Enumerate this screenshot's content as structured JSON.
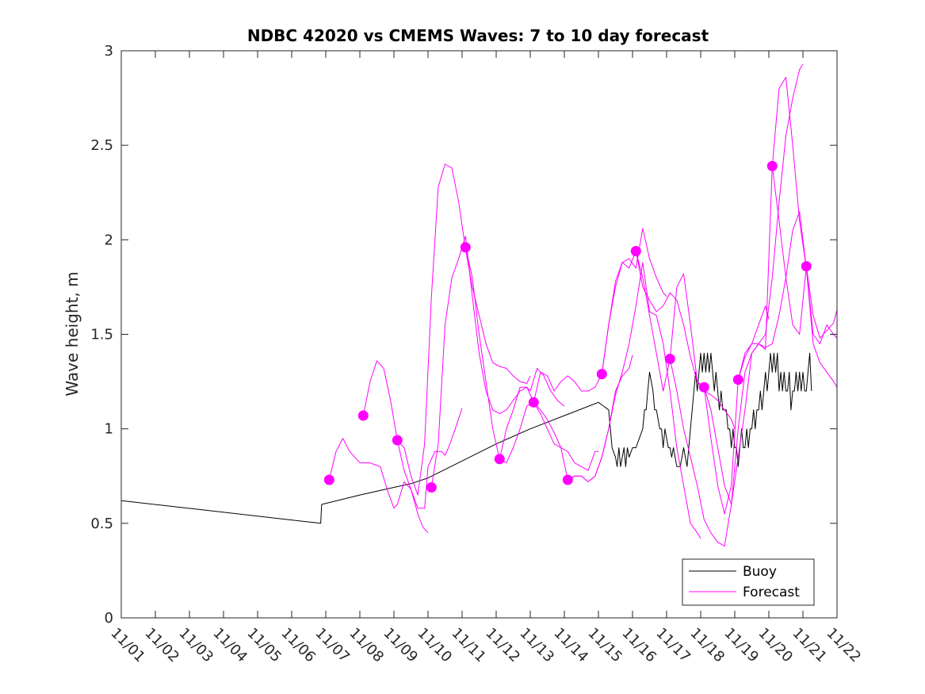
{
  "chart_data": {
    "type": "line",
    "title": "NDBC 42020 vs CMEMS Waves: 7 to 10 day forecast",
    "xlabel": "",
    "ylabel": "Wave height, m",
    "x_units": "day of November (day 1 = 11/01)",
    "xlim": [
      1,
      22
    ],
    "ylim": [
      0,
      3
    ],
    "x_ticks": [
      1,
      2,
      3,
      4,
      5,
      6,
      7,
      8,
      9,
      10,
      11,
      12,
      13,
      14,
      15,
      16,
      17,
      18,
      19,
      20,
      21,
      22
    ],
    "x_tick_labels": [
      "11/01",
      "11/02",
      "11/03",
      "11/04",
      "11/05",
      "11/06",
      "11/07",
      "11/08",
      "11/09",
      "11/10",
      "11/11",
      "11/12",
      "11/13",
      "11/14",
      "11/15",
      "11/16",
      "11/17",
      "11/18",
      "11/19",
      "11/20",
      "11/21",
      "11/22"
    ],
    "y_ticks": [
      0,
      0.5,
      1,
      1.5,
      2,
      2.5,
      3
    ],
    "y_tick_labels": [
      "0",
      "0.5",
      "1",
      "1.5",
      "2",
      "2.5",
      "3"
    ],
    "grid": false,
    "legend": {
      "location": "bottom-right",
      "entries": [
        "Buoy",
        "Forecast"
      ]
    },
    "colors": {
      "buoy": "#000000",
      "forecast": "#ff00ff",
      "axis": "#262626"
    },
    "series": [
      {
        "name": "Buoy",
        "color": "#000000",
        "x": [
          1,
          6.85,
          6.88,
          8.0,
          9.0,
          9.5,
          10.0,
          11.0,
          12.0,
          13.0,
          14.0,
          15.0,
          15.3,
          15.35,
          15.4,
          15.5,
          15.55,
          15.6,
          15.65,
          15.7,
          15.75,
          15.8,
          15.85,
          15.9,
          16.0,
          16.1,
          16.2,
          16.3,
          16.35,
          16.4,
          16.45,
          16.5,
          16.6,
          16.65,
          16.7,
          16.8,
          16.85,
          16.9,
          16.95,
          17.0,
          17.05,
          17.1,
          17.15,
          17.2,
          17.3,
          17.4,
          17.5,
          17.6,
          17.7,
          17.75,
          17.8,
          17.85,
          17.9,
          17.95,
          18.0,
          18.05,
          18.1,
          18.15,
          18.2,
          18.25,
          18.3,
          18.35,
          18.4,
          18.45,
          18.5,
          18.55,
          18.6,
          18.65,
          18.7,
          18.75,
          18.8,
          18.85,
          18.9,
          18.95,
          19.0,
          19.05,
          19.1,
          19.15,
          19.2,
          19.25,
          19.3,
          19.35,
          19.4,
          19.45,
          19.5,
          19.55,
          19.6,
          19.65,
          19.7,
          19.75,
          19.8,
          19.85,
          19.9,
          19.95,
          20.0,
          20.05,
          20.1,
          20.15,
          20.2,
          20.25,
          20.3,
          20.35,
          20.4,
          20.45,
          20.5,
          20.55,
          20.6,
          20.65,
          20.7,
          20.75,
          20.8,
          20.85,
          20.9,
          20.95,
          21.0,
          21.05,
          21.1,
          21.15,
          21.2,
          21.25
        ],
        "values": [
          0.62,
          0.5,
          0.6,
          0.65,
          0.69,
          0.71,
          0.74,
          0.83,
          0.92,
          1.0,
          1.07,
          1.14,
          1.1,
          1.0,
          0.9,
          0.85,
          0.8,
          0.9,
          0.8,
          0.85,
          0.9,
          0.8,
          0.9,
          0.85,
          0.9,
          0.9,
          0.95,
          1.0,
          1.1,
          1.1,
          1.2,
          1.3,
          1.2,
          1.1,
          1.1,
          1.0,
          1.0,
          0.9,
          1.0,
          0.95,
          0.9,
          0.9,
          0.85,
          0.9,
          0.8,
          0.8,
          0.9,
          0.8,
          1.0,
          1.1,
          1.2,
          1.3,
          1.2,
          1.3,
          1.4,
          1.3,
          1.4,
          1.3,
          1.4,
          1.3,
          1.4,
          1.3,
          1.2,
          1.3,
          1.2,
          1.1,
          1.2,
          1.1,
          1.1,
          1.1,
          1.0,
          1.0,
          0.9,
          1.0,
          0.9,
          0.9,
          0.8,
          0.9,
          1.0,
          0.9,
          0.9,
          1.0,
          0.9,
          1.0,
          1.0,
          1.1,
          1.0,
          1.1,
          1.1,
          1.2,
          1.1,
          1.2,
          1.3,
          1.2,
          1.3,
          1.4,
          1.3,
          1.4,
          1.3,
          1.4,
          1.2,
          1.3,
          1.2,
          1.3,
          1.2,
          1.2,
          1.3,
          1.1,
          1.2,
          1.2,
          1.3,
          1.2,
          1.3,
          1.2,
          1.3,
          1.2,
          1.2,
          1.3,
          1.4,
          1.2
        ]
      },
      {
        "name": "Forecast run 1",
        "color": "#ff00ff",
        "x": [
          7.1,
          7.3,
          7.5,
          7.7,
          8.0,
          8.3,
          8.6,
          8.8,
          9.0,
          9.1,
          9.3,
          9.5,
          9.7,
          9.85,
          10.0
        ],
        "values": [
          0.73,
          0.88,
          0.95,
          0.88,
          0.82,
          0.82,
          0.8,
          0.68,
          0.58,
          0.6,
          0.72,
          0.68,
          0.55,
          0.48,
          0.45
        ]
      },
      {
        "name": "Forecast run 2",
        "color": "#ff00ff",
        "x": [
          8.1,
          8.3,
          8.5,
          8.7,
          8.9,
          9.1,
          9.3,
          9.5,
          9.7,
          9.9,
          10.0,
          10.2,
          10.4,
          10.5,
          10.6,
          10.8,
          11.0
        ],
        "values": [
          1.07,
          1.25,
          1.36,
          1.32,
          1.15,
          0.94,
          0.78,
          0.68,
          0.58,
          0.58,
          0.8,
          0.88,
          0.88,
          0.86,
          0.9,
          1.0,
          1.11
        ]
      },
      {
        "name": "Forecast run 3",
        "color": "#ff00ff",
        "x": [
          9.1,
          9.3,
          9.5,
          9.7,
          9.9,
          10.1,
          10.3,
          10.5,
          10.7,
          10.9,
          11.1,
          11.3,
          11.5,
          11.7,
          11.9,
          12.1,
          12.3,
          12.5,
          12.7,
          12.9,
          13.0
        ],
        "values": [
          0.94,
          0.9,
          0.75,
          0.65,
          0.92,
          1.7,
          2.28,
          2.4,
          2.38,
          2.2,
          1.95,
          1.75,
          1.6,
          1.45,
          1.35,
          1.33,
          1.32,
          1.28,
          1.25,
          1.24,
          1.28
        ]
      },
      {
        "name": "Forecast run 4",
        "color": "#ff00ff",
        "x": [
          10.1,
          10.3,
          10.5,
          10.7,
          10.9,
          11.1,
          11.3,
          11.5,
          11.7,
          11.9,
          12.1,
          12.3,
          12.5,
          12.7,
          12.9,
          13.0,
          13.2,
          13.4,
          13.6,
          13.8,
          14.0
        ],
        "values": [
          0.69,
          0.92,
          1.55,
          1.8,
          1.9,
          2.02,
          1.7,
          1.4,
          1.2,
          1.1,
          1.08,
          1.1,
          1.15,
          1.2,
          1.22,
          1.2,
          1.32,
          1.28,
          1.2,
          1.15,
          1.12
        ]
      },
      {
        "name": "Forecast run 5",
        "color": "#ff00ff",
        "x": [
          11.1,
          11.3,
          11.5,
          11.7,
          11.9,
          12.1,
          12.3,
          12.5,
          12.7,
          12.9,
          13.1,
          13.3,
          13.5,
          13.7,
          13.9,
          14.1,
          14.3,
          14.5,
          14.7,
          14.9,
          15.0
        ],
        "values": [
          1.96,
          1.8,
          1.5,
          1.25,
          1.0,
          0.84,
          0.82,
          0.9,
          1.0,
          1.12,
          1.14,
          1.08,
          1.0,
          0.92,
          0.9,
          0.88,
          0.82,
          0.8,
          0.78,
          0.88,
          0.88
        ]
      },
      {
        "name": "Forecast run 6",
        "color": "#ff00ff",
        "x": [
          12.1,
          12.3,
          12.5,
          12.7,
          12.9,
          13.1,
          13.3,
          13.5,
          13.7,
          13.9,
          14.1,
          14.3,
          14.5,
          14.7,
          14.9,
          15.1,
          15.3,
          15.5,
          15.7,
          15.9,
          16.0
        ],
        "values": [
          0.84,
          1.0,
          1.1,
          1.22,
          1.22,
          1.14,
          1.1,
          1.05,
          0.98,
          0.9,
          0.73,
          0.75,
          0.75,
          0.72,
          0.75,
          0.85,
          1.0,
          1.2,
          1.28,
          1.32,
          1.39
        ]
      },
      {
        "name": "Forecast run 7",
        "color": "#ff00ff",
        "x": [
          13.1,
          13.3,
          13.5,
          13.7,
          13.9,
          14.1,
          14.3,
          14.5,
          14.7,
          14.9,
          15.1,
          15.3,
          15.5,
          15.7,
          15.9,
          16.1,
          16.3,
          16.5,
          16.7,
          16.9,
          17.0
        ],
        "values": [
          1.14,
          1.3,
          1.28,
          1.2,
          1.25,
          1.28,
          1.25,
          1.2,
          1.2,
          1.22,
          1.29,
          1.55,
          1.78,
          1.88,
          1.9,
          1.85,
          2.06,
          1.9,
          1.8,
          1.72,
          1.7
        ]
      },
      {
        "name": "Forecast run 8",
        "color": "#ff00ff",
        "x": [
          14.1,
          14.3,
          14.5,
          14.7,
          14.9,
          15.1,
          15.3,
          15.5,
          15.7,
          15.9,
          16.1,
          16.3,
          16.5,
          16.7,
          16.9,
          17.1,
          17.3,
          17.5,
          17.7,
          17.9,
          18.0
        ],
        "values": [
          0.73,
          0.75,
          0.75,
          0.72,
          0.75,
          0.85,
          1.0,
          1.18,
          1.3,
          1.45,
          1.65,
          1.88,
          1.62,
          1.6,
          1.45,
          1.2,
          0.9,
          0.7,
          0.5,
          0.45,
          0.42
        ]
      },
      {
        "name": "Forecast run 9",
        "color": "#ff00ff",
        "x": [
          15.1,
          15.3,
          15.5,
          15.7,
          15.9,
          16.1,
          16.3,
          16.5,
          16.7,
          16.9,
          17.1,
          17.3,
          17.5,
          17.7,
          17.9,
          18.1,
          18.3,
          18.5,
          18.7,
          18.9,
          19.0
        ],
        "values": [
          1.29,
          1.55,
          1.75,
          1.88,
          1.85,
          1.94,
          1.75,
          1.68,
          1.62,
          1.65,
          1.72,
          1.68,
          1.55,
          1.38,
          1.25,
          1.2,
          1.18,
          1.15,
          1.1,
          1.05,
          1.0
        ]
      },
      {
        "name": "Forecast run 10",
        "color": "#ff00ff",
        "x": [
          16.1,
          16.3,
          16.5,
          16.7,
          16.9,
          17.1,
          17.3,
          17.5,
          17.7,
          17.9,
          18.1,
          18.3,
          18.5,
          18.7,
          18.9,
          19.1,
          19.3,
          19.5,
          19.7,
          19.9,
          20.0
        ],
        "values": [
          1.94,
          1.8,
          1.6,
          1.4,
          1.2,
          1.37,
          1.75,
          1.82,
          1.55,
          1.25,
          1.22,
          0.95,
          0.7,
          0.55,
          0.7,
          1.26,
          1.38,
          1.45,
          1.55,
          1.65,
          1.58
        ]
      },
      {
        "name": "Forecast run 11",
        "color": "#ff00ff",
        "x": [
          17.1,
          17.3,
          17.5,
          17.7,
          17.9,
          18.1,
          18.3,
          18.5,
          18.7,
          18.9,
          19.1,
          19.3,
          19.5,
          19.7,
          19.9,
          20.1,
          20.3,
          20.5,
          20.7,
          20.9,
          21.0
        ],
        "values": [
          1.37,
          1.2,
          1.0,
          0.85,
          0.7,
          0.52,
          0.45,
          0.4,
          0.38,
          0.6,
          1.0,
          1.3,
          1.4,
          1.45,
          1.5,
          1.8,
          2.2,
          2.55,
          2.75,
          2.9,
          2.93
        ]
      },
      {
        "name": "Forecast run 12",
        "color": "#ff00ff",
        "x": [
          18.1,
          18.3,
          18.5,
          18.7,
          18.9,
          19.1,
          19.3,
          19.5,
          19.7,
          19.9,
          20.1,
          20.3,
          20.5,
          20.7,
          20.9,
          21.1,
          21.3,
          21.5,
          21.7,
          21.9,
          22.0
        ],
        "values": [
          1.22,
          1.1,
          0.9,
          0.7,
          0.6,
          0.85,
          1.1,
          1.4,
          1.45,
          1.42,
          2.39,
          2.8,
          2.86,
          2.5,
          2.1,
          1.85,
          1.45,
          1.35,
          1.3,
          1.25,
          1.22
        ]
      },
      {
        "name": "Forecast run 13",
        "color": "#ff00ff",
        "x": [
          19.1,
          19.3,
          19.5,
          19.7,
          19.9,
          20.1,
          20.3,
          20.5,
          20.7,
          20.9,
          21.1,
          21.3,
          21.5,
          21.7,
          21.9,
          22.0
        ],
        "values": [
          1.26,
          1.4,
          1.45,
          1.45,
          1.43,
          1.45,
          1.6,
          1.8,
          2.05,
          2.15,
          1.85,
          1.5,
          1.45,
          1.55,
          1.5,
          1.48
        ]
      },
      {
        "name": "Forecast run 14",
        "color": "#ff00ff",
        "x": [
          20.1,
          20.3,
          20.5,
          20.7,
          20.9,
          21.1,
          21.3,
          21.5,
          21.7,
          21.9,
          22.0
        ],
        "values": [
          2.39,
          2.1,
          1.8,
          1.55,
          1.5,
          1.86,
          1.6,
          1.48,
          1.52,
          1.56,
          1.63
        ]
      }
    ],
    "markers": {
      "name": "Forecast initial points",
      "color": "#ff00ff",
      "x": [
        7.1,
        8.1,
        9.1,
        10.1,
        11.1,
        12.1,
        13.1,
        14.1,
        15.1,
        16.1,
        17.1,
        18.1,
        19.1,
        20.1,
        21.1
      ],
      "values": [
        0.73,
        1.07,
        0.94,
        0.69,
        1.96,
        0.84,
        1.14,
        0.73,
        1.29,
        1.94,
        1.37,
        1.22,
        1.26,
        2.39,
        1.86
      ]
    }
  }
}
